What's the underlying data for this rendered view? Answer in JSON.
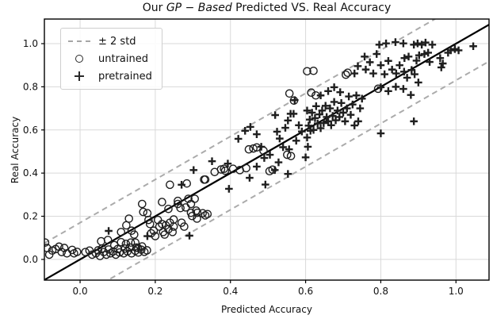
{
  "legend": {
    "items": [
      {
        "label": "± 2 std",
        "icon": "dashed-line-icon"
      },
      {
        "label": "untrained",
        "icon": "circle-marker-icon"
      },
      {
        "label": "pretrained",
        "icon": "plus-marker-icon"
      }
    ]
  },
  "chart_data": {
    "type": "scatter",
    "title_prefix": "Our ",
    "title_italic": "GP − Based",
    "title_suffix": " Predicted VS. Real Accuracy",
    "xlabel": "Predicted Accuracy",
    "ylabel": "Real Accuracy",
    "xlim": [
      -0.095,
      1.088
    ],
    "ylim": [
      -0.096,
      1.114
    ],
    "xticks": [
      0.0,
      0.2,
      0.4,
      0.6,
      0.8,
      1.0
    ],
    "yticks": [
      0.0,
      0.2,
      0.4,
      0.6,
      0.8,
      1.0
    ],
    "grid": true,
    "legend_position": "upper left",
    "identity_line": {
      "slope": 1,
      "intercept": 0,
      "color": "#000000",
      "width": 2.2
    },
    "std_band": {
      "label": "± 2 std",
      "offset": 0.17,
      "color": "#ababab",
      "dash": "7 5",
      "width": 2
    },
    "colors": {
      "marker": "#1f1f1f",
      "grid": "#d9d9d9",
      "spine": "#000000",
      "tick_text": "#111111"
    },
    "series": [
      {
        "name": "untrained",
        "marker": "circle",
        "points": [
          [
            -0.093,
            0.078
          ],
          [
            -0.088,
            0.053
          ],
          [
            -0.082,
            0.022
          ],
          [
            -0.074,
            0.041
          ],
          [
            -0.065,
            0.048
          ],
          [
            -0.056,
            0.059
          ],
          [
            -0.049,
            0.034
          ],
          [
            -0.042,
            0.053
          ],
          [
            -0.035,
            0.028
          ],
          [
            -0.021,
            0.044
          ],
          [
            -0.016,
            0.028
          ],
          [
            -0.008,
            0.035
          ],
          [
            0.014,
            0.034
          ],
          [
            0.025,
            0.041
          ],
          [
            0.032,
            0.022
          ],
          [
            0.042,
            0.028
          ],
          [
            0.048,
            0.042
          ],
          [
            0.053,
            0.016
          ],
          [
            0.056,
            0.084
          ],
          [
            0.058,
            0.05
          ],
          [
            0.063,
            0.034
          ],
          [
            0.07,
            0.022
          ],
          [
            0.074,
            0.09
          ],
          [
            0.076,
            0.046
          ],
          [
            0.081,
            0.028
          ],
          [
            0.088,
            0.037
          ],
          [
            0.091,
            0.066
          ],
          [
            0.095,
            0.022
          ],
          [
            0.1,
            0.048
          ],
          [
            0.105,
            0.032
          ],
          [
            0.109,
            0.08
          ],
          [
            0.109,
            0.127
          ],
          [
            0.116,
            0.028
          ],
          [
            0.12,
            0.05
          ],
          [
            0.122,
            0.072
          ],
          [
            0.123,
            0.158
          ],
          [
            0.126,
            0.037
          ],
          [
            0.13,
            0.189
          ],
          [
            0.132,
            0.055
          ],
          [
            0.135,
            0.078
          ],
          [
            0.137,
            0.028
          ],
          [
            0.137,
            0.133
          ],
          [
            0.144,
            0.115
          ],
          [
            0.147,
            0.04
          ],
          [
            0.147,
            0.078
          ],
          [
            0.15,
            0.055
          ],
          [
            0.154,
            0.053
          ],
          [
            0.155,
            0.032
          ],
          [
            0.163,
            0.045
          ],
          [
            0.165,
            0.06
          ],
          [
            0.165,
            0.257
          ],
          [
            0.168,
            0.22
          ],
          [
            0.171,
            0.035
          ],
          [
            0.178,
            0.042
          ],
          [
            0.179,
            0.214
          ],
          [
            0.182,
            0.183
          ],
          [
            0.186,
            0.164
          ],
          [
            0.189,
            0.121
          ],
          [
            0.196,
            0.133
          ],
          [
            0.2,
            0.108
          ],
          [
            0.207,
            0.183
          ],
          [
            0.211,
            0.152
          ],
          [
            0.218,
            0.164
          ],
          [
            0.218,
            0.266
          ],
          [
            0.221,
            0.127
          ],
          [
            0.225,
            0.115
          ],
          [
            0.228,
            0.158
          ],
          [
            0.235,
            0.14
          ],
          [
            0.235,
            0.234
          ],
          [
            0.239,
            0.17
          ],
          [
            0.239,
            0.346
          ],
          [
            0.246,
            0.127
          ],
          [
            0.249,
            0.152
          ],
          [
            0.249,
            0.185
          ],
          [
            0.26,
            0.257
          ],
          [
            0.26,
            0.271
          ],
          [
            0.267,
            0.238
          ],
          [
            0.27,
            0.17
          ],
          [
            0.277,
            0.152
          ],
          [
            0.281,
            0.241
          ],
          [
            0.284,
            0.352
          ],
          [
            0.288,
            0.281
          ],
          [
            0.295,
            0.216
          ],
          [
            0.295,
            0.257
          ],
          [
            0.298,
            0.201
          ],
          [
            0.305,
            0.281
          ],
          [
            0.309,
            0.226
          ],
          [
            0.311,
            0.189
          ],
          [
            0.312,
            0.216
          ],
          [
            0.326,
            0.214
          ],
          [
            0.33,
            0.37
          ],
          [
            0.333,
            0.204
          ],
          [
            0.333,
            0.37
          ],
          [
            0.339,
            0.21
          ],
          [
            0.358,
            0.405
          ],
          [
            0.375,
            0.417
          ],
          [
            0.383,
            0.42
          ],
          [
            0.386,
            0.411
          ],
          [
            0.407,
            0.42
          ],
          [
            0.425,
            0.414
          ],
          [
            0.442,
            0.423
          ],
          [
            0.449,
            0.51
          ],
          [
            0.461,
            0.514
          ],
          [
            0.47,
            0.519
          ],
          [
            0.488,
            0.504
          ],
          [
            0.504,
            0.409
          ],
          [
            0.512,
            0.416
          ],
          [
            0.551,
            0.485
          ],
          [
            0.561,
            0.479
          ],
          [
            0.557,
            0.769
          ],
          [
            0.569,
            0.736
          ],
          [
            0.604,
            0.872
          ],
          [
            0.615,
            0.773
          ],
          [
            0.621,
            0.874
          ],
          [
            0.627,
            0.76
          ],
          [
            0.707,
            0.856
          ],
          [
            0.712,
            0.865
          ],
          [
            0.793,
            0.791
          ]
        ]
      },
      {
        "name": "pretrained",
        "marker": "plus",
        "points": [
          [
            0.076,
            0.132
          ],
          [
            0.179,
            0.108
          ],
          [
            0.27,
            0.346
          ],
          [
            0.291,
            0.11
          ],
          [
            0.302,
            0.414
          ],
          [
            0.351,
            0.455
          ],
          [
            0.393,
            0.444
          ],
          [
            0.396,
            0.327
          ],
          [
            0.421,
            0.559
          ],
          [
            0.439,
            0.596
          ],
          [
            0.451,
            0.378
          ],
          [
            0.453,
            0.614
          ],
          [
            0.47,
            0.43
          ],
          [
            0.47,
            0.58
          ],
          [
            0.482,
            0.522
          ],
          [
            0.49,
            0.47
          ],
          [
            0.493,
            0.347
          ],
          [
            0.505,
            0.485
          ],
          [
            0.518,
            0.414
          ],
          [
            0.519,
            0.669
          ],
          [
            0.524,
            0.592
          ],
          [
            0.528,
            0.45
          ],
          [
            0.531,
            0.56
          ],
          [
            0.54,
            0.52
          ],
          [
            0.546,
            0.61
          ],
          [
            0.553,
            0.396
          ],
          [
            0.553,
            0.644
          ],
          [
            0.556,
            0.51
          ],
          [
            0.56,
            0.675
          ],
          [
            0.568,
            0.675
          ],
          [
            0.571,
            0.738
          ],
          [
            0.575,
            0.55
          ],
          [
            0.582,
            0.622
          ],
          [
            0.59,
            0.593
          ],
          [
            0.6,
            0.473
          ],
          [
            0.604,
            0.565
          ],
          [
            0.606,
            0.522
          ],
          [
            0.604,
            0.69
          ],
          [
            0.608,
            0.62
          ],
          [
            0.611,
            0.648
          ],
          [
            0.613,
            0.596
          ],
          [
            0.617,
            0.68
          ],
          [
            0.621,
            0.6
          ],
          [
            0.625,
            0.655
          ],
          [
            0.628,
            0.71
          ],
          [
            0.632,
            0.63
          ],
          [
            0.637,
            0.672
          ],
          [
            0.64,
            0.608
          ],
          [
            0.64,
            0.76
          ],
          [
            0.644,
            0.69
          ],
          [
            0.648,
            0.632
          ],
          [
            0.653,
            0.712
          ],
          [
            0.656,
            0.66
          ],
          [
            0.66,
            0.64
          ],
          [
            0.66,
            0.78
          ],
          [
            0.665,
            0.7
          ],
          [
            0.668,
            0.622
          ],
          [
            0.672,
            0.665
          ],
          [
            0.676,
            0.73
          ],
          [
            0.676,
            0.798
          ],
          [
            0.68,
            0.645
          ],
          [
            0.685,
            0.69
          ],
          [
            0.69,
            0.66
          ],
          [
            0.692,
            0.775
          ],
          [
            0.695,
            0.725
          ],
          [
            0.7,
            0.68
          ],
          [
            0.705,
            0.64
          ],
          [
            0.71,
            0.7
          ],
          [
            0.715,
            0.755
          ],
          [
            0.72,
            0.67
          ],
          [
            0.725,
            0.718
          ],
          [
            0.73,
            0.621
          ],
          [
            0.73,
            0.862
          ],
          [
            0.735,
            0.76
          ],
          [
            0.739,
            0.896
          ],
          [
            0.74,
            0.64
          ],
          [
            0.745,
            0.7
          ],
          [
            0.75,
            0.745
          ],
          [
            0.757,
            0.94
          ],
          [
            0.76,
            0.88
          ],
          [
            0.771,
            0.914
          ],
          [
            0.78,
            0.862
          ],
          [
            0.789,
            0.952
          ],
          [
            0.796,
            0.995
          ],
          [
            0.8,
            0.584
          ],
          [
            0.8,
            0.798
          ],
          [
            0.8,
            0.9
          ],
          [
            0.81,
            0.858
          ],
          [
            0.814,
            1.001
          ],
          [
            0.82,
            0.78
          ],
          [
            0.82,
            0.92
          ],
          [
            0.83,
            0.88
          ],
          [
            0.839,
            1.007
          ],
          [
            0.84,
            0.8
          ],
          [
            0.841,
            0.862
          ],
          [
            0.85,
            0.9
          ],
          [
            0.86,
            0.79
          ],
          [
            0.86,
            1.001
          ],
          [
            0.862,
            0.87
          ],
          [
            0.863,
            0.933
          ],
          [
            0.87,
            0.842
          ],
          [
            0.874,
            0.94
          ],
          [
            0.88,
            0.762
          ],
          [
            0.882,
            0.878
          ],
          [
            0.888,
            0.64
          ],
          [
            0.888,
            0.995
          ],
          [
            0.89,
            0.858
          ],
          [
            0.895,
            0.921
          ],
          [
            0.898,
            1.001
          ],
          [
            0.9,
            0.82
          ],
          [
            0.902,
            0.946
          ],
          [
            0.909,
            0.995
          ],
          [
            0.916,
            0.952
          ],
          [
            0.919,
            1.005
          ],
          [
            0.926,
            0.958
          ],
          [
            0.93,
            0.915
          ],
          [
            0.937,
            0.995
          ],
          [
            0.958,
            0.933
          ],
          [
            0.961,
            0.89
          ],
          [
            0.965,
            0.908
          ],
          [
            0.979,
            0.958
          ],
          [
            0.986,
            0.969
          ],
          [
            0.997,
            0.975
          ],
          [
            1.007,
            0.969
          ],
          [
            1.046,
            0.988
          ]
        ]
      }
    ]
  }
}
